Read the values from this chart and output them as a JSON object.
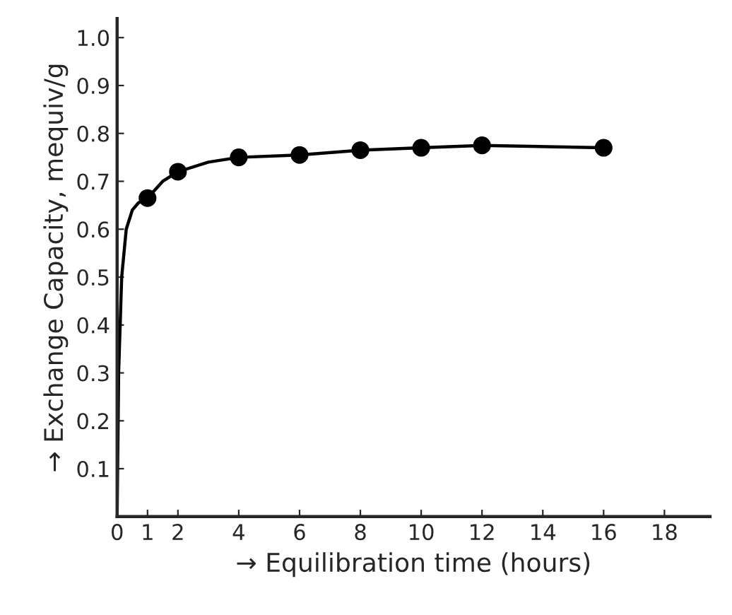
{
  "chart_data": {
    "type": "line",
    "xlabel": "→ Equilibration time (hours)",
    "ylabel": "→ Exchange Capacity, mequiv/g",
    "series": [
      {
        "color": "#000000",
        "marker": "none",
        "line_style": "solid",
        "x": [
          0,
          0.05,
          0.15,
          0.3,
          0.5,
          0.7,
          1,
          1.5,
          2,
          3,
          4,
          6,
          8,
          10,
          12,
          16
        ],
        "values": [
          0.0,
          0.3,
          0.5,
          0.6,
          0.64,
          0.655,
          0.665,
          0.7,
          0.72,
          0.74,
          0.75,
          0.755,
          0.765,
          0.77,
          0.775,
          0.77
        ]
      },
      {
        "type": "scatter",
        "color": "#000000",
        "marker": "circle",
        "x": [
          1,
          2,
          4,
          6,
          8,
          10,
          12,
          16
        ],
        "values": [
          0.665,
          0.72,
          0.75,
          0.755,
          0.765,
          0.77,
          0.775,
          0.77
        ]
      }
    ],
    "xlim": [
      0,
      19.5
    ],
    "xticks": [
      0,
      1,
      2,
      4,
      6,
      8,
      10,
      12,
      14,
      16,
      18
    ],
    "ylim": [
      0,
      1.04
    ],
    "yticks": [
      0.1,
      0.2,
      0.3,
      0.4,
      0.5,
      0.6,
      0.7,
      0.8,
      0.9,
      {
        "value": 1.0,
        "label": "1.0"
      }
    ],
    "grid": false,
    "legend": false
  }
}
